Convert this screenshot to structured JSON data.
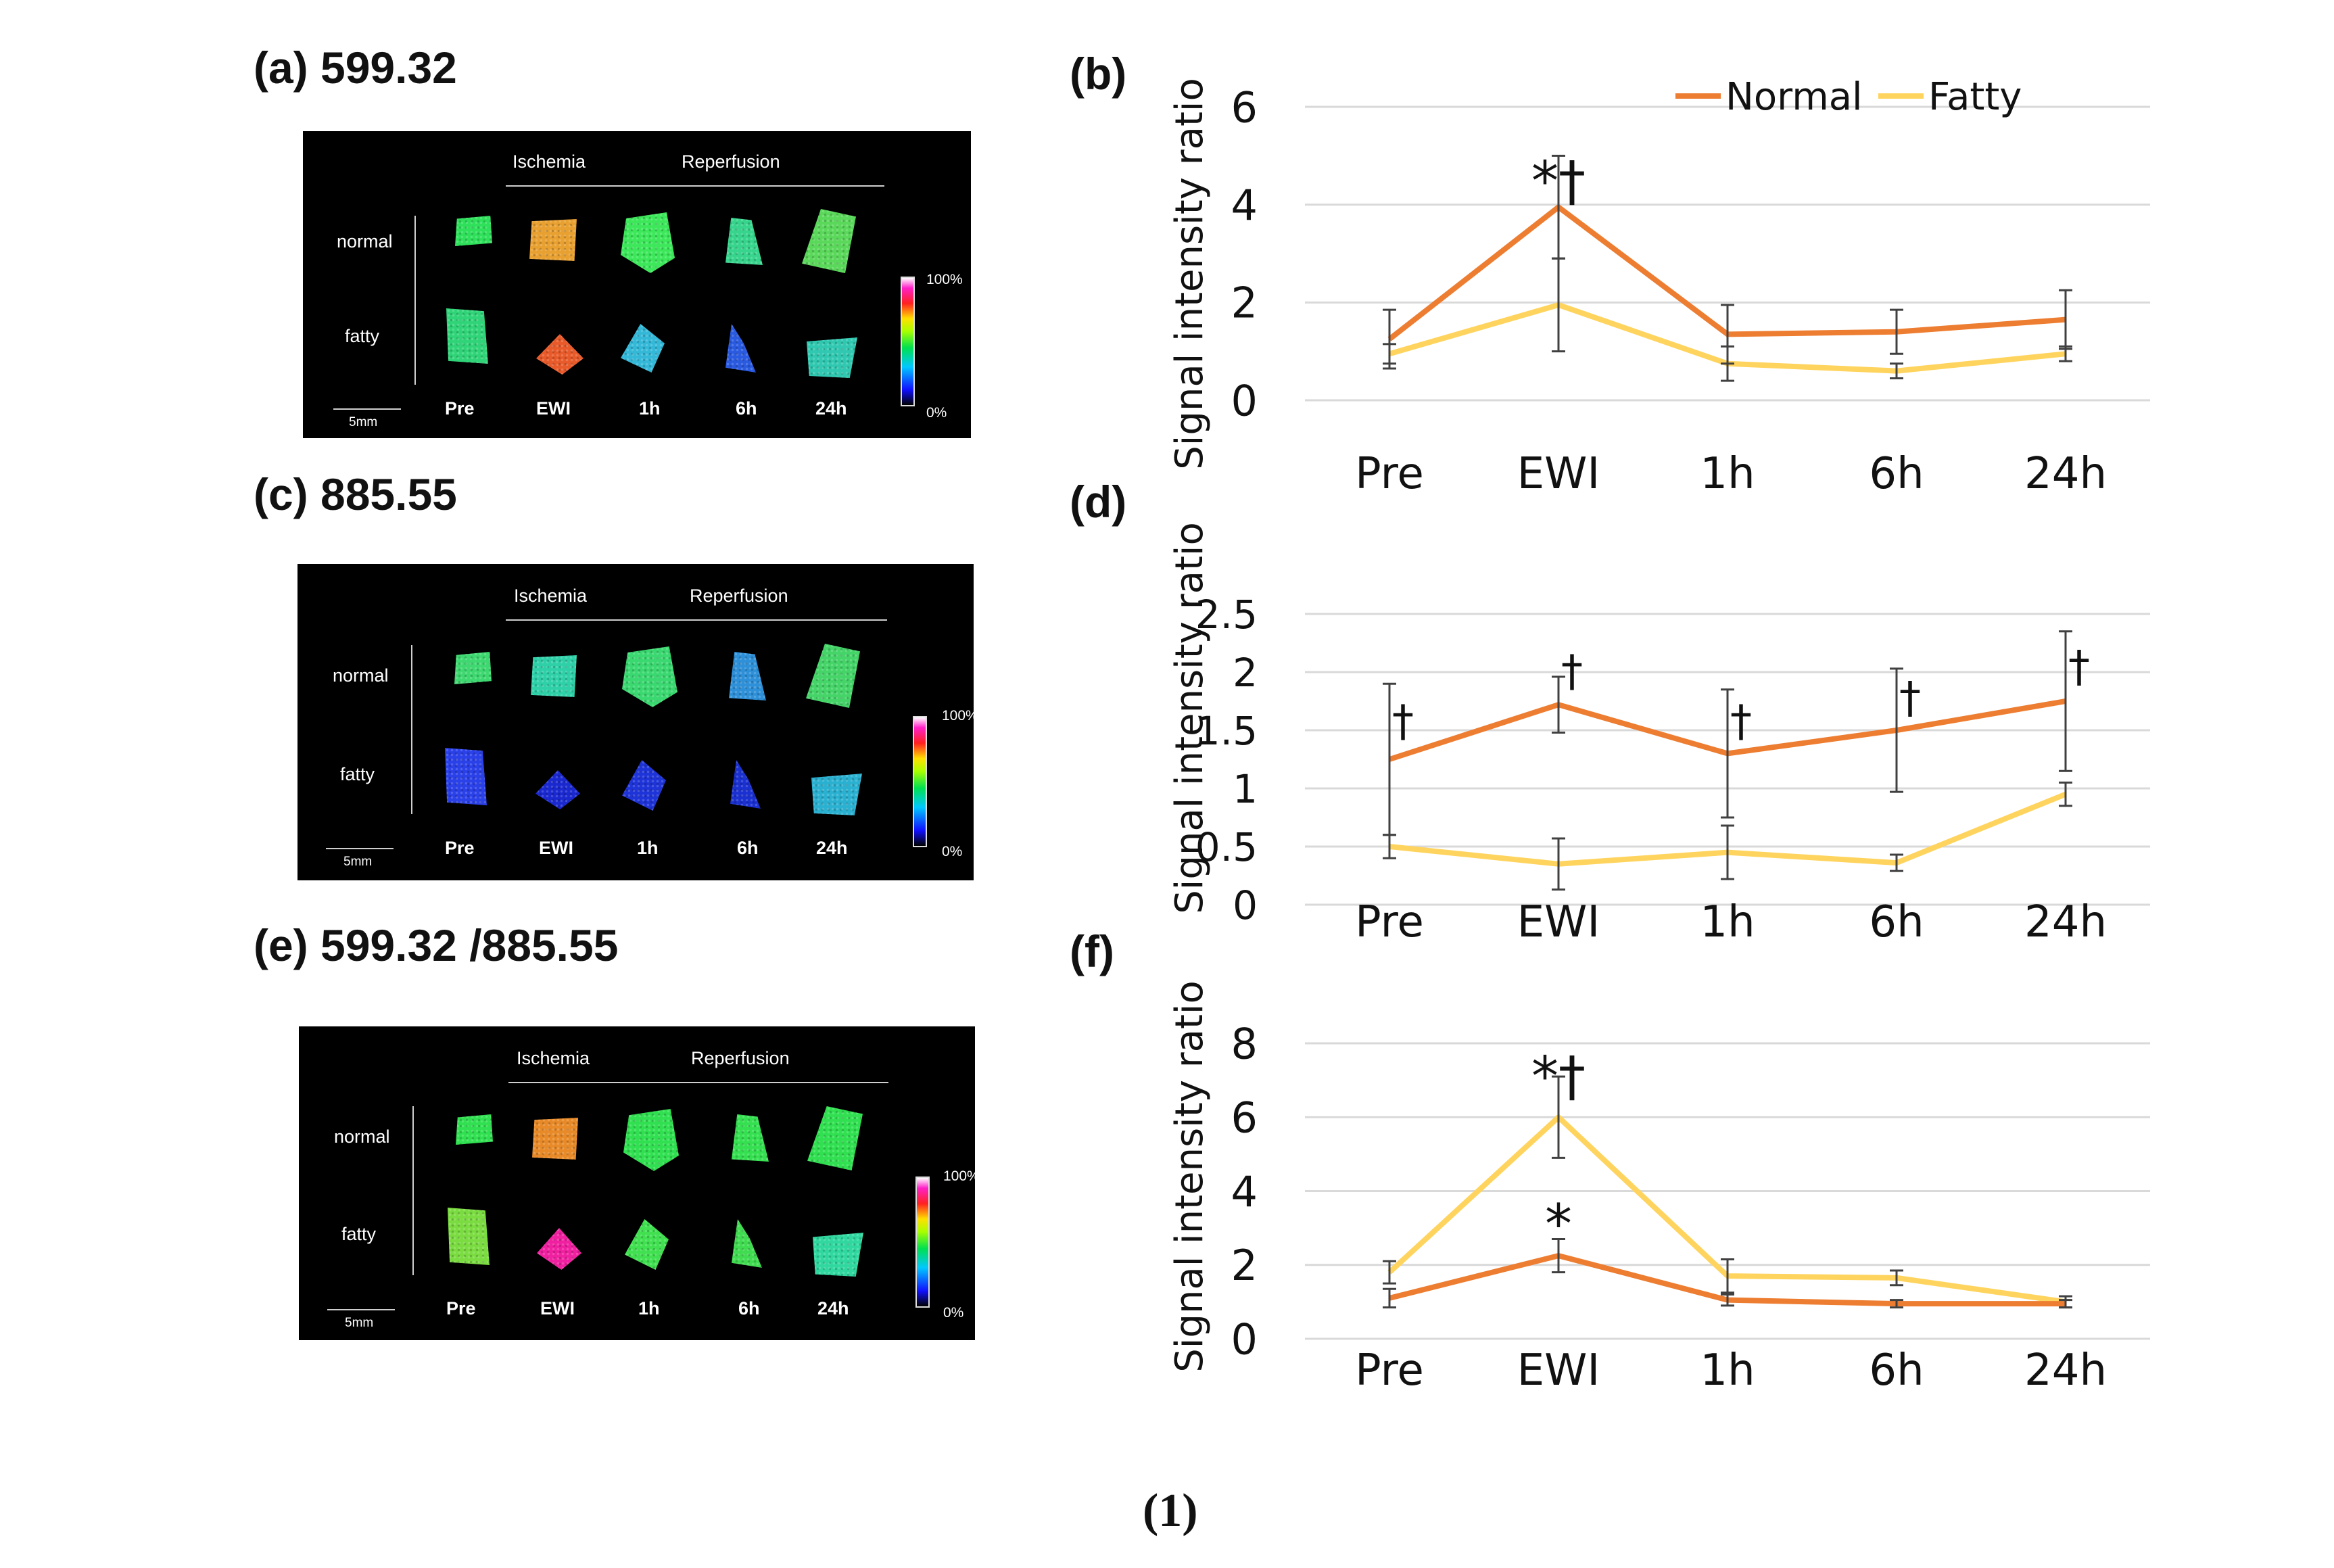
{
  "figure_number": "(1)",
  "msi_panels": [
    {
      "label": "(a) 599.32",
      "group_ischemia": "Ischemia",
      "group_reperfusion": "Reperfusion",
      "row_normal": "normal",
      "row_fatty": "fatty",
      "timepoints": [
        "Pre",
        "EWI",
        "1h",
        "6h",
        "24h"
      ],
      "scale_bar": "5mm",
      "colorbar_max": "100%",
      "colorbar_min": "0%",
      "normal_colors": [
        "#2ee05a",
        "#e8a030",
        "#3ce85a",
        "#36d48c",
        "#5ad85a"
      ],
      "fatty_colors": [
        "#30d478",
        "#e85a2a",
        "#34b8d8",
        "#2a5ae0",
        "#30c8b0"
      ]
    },
    {
      "label": "(c) 885.55",
      "group_ischemia": "Ischemia",
      "group_reperfusion": "Reperfusion",
      "row_normal": "normal",
      "row_fatty": "fatty",
      "timepoints": [
        "Pre",
        "EWI",
        "1h",
        "6h",
        "24h"
      ],
      "scale_bar": "5mm",
      "colorbar_max": "100%",
      "colorbar_min": "0%",
      "normal_colors": [
        "#3ed870",
        "#2ed0a8",
        "#3ad870",
        "#2e90d8",
        "#44d468"
      ],
      "fatty_colors": [
        "#2a40e8",
        "#1a28d0",
        "#1e34d8",
        "#1a30d0",
        "#2ab0d0"
      ]
    },
    {
      "label": "(e) 599.32 /885.55",
      "group_ischemia": "Ischemia",
      "group_reperfusion": "Reperfusion",
      "row_normal": "normal",
      "row_fatty": "fatty",
      "timepoints": [
        "Pre",
        "EWI",
        "1h",
        "6h",
        "24h"
      ],
      "scale_bar": "5mm",
      "colorbar_max": "100%",
      "colorbar_min": "0%",
      "normal_colors": [
        "#30e050",
        "#e88a28",
        "#30e050",
        "#34e050",
        "#30e050"
      ],
      "fatty_colors": [
        "#7adc40",
        "#f020a0",
        "#40e050",
        "#40dc50",
        "#30d8a0"
      ]
    }
  ],
  "legend": {
    "normal": "Normal",
    "fatty": "Fatty"
  },
  "colors": {
    "normal": "#ed7d31",
    "fatty": "#ffd45e",
    "grid": "#d9d9d9",
    "error_bar": "#404040"
  },
  "chart_data": [
    {
      "panel": "(b)",
      "type": "line",
      "ylabel": "Signal intensity ratio",
      "categories": [
        "Pre",
        "EWI",
        "1h",
        "6h",
        "24h"
      ],
      "ylim": [
        0,
        6
      ],
      "yticks": [
        "0",
        "2",
        "4",
        "6"
      ],
      "grid": true,
      "legend_position": "top",
      "series": [
        {
          "name": "Normal",
          "values": [
            1.25,
            3.95,
            1.35,
            1.4,
            1.65
          ],
          "err": [
            0.6,
            1.05,
            0.6,
            0.45,
            0.6
          ]
        },
        {
          "name": "Fatty",
          "values": [
            0.95,
            1.95,
            0.75,
            0.6,
            0.95
          ],
          "err": [
            0.2,
            0.95,
            0.35,
            0.15,
            0.15
          ]
        }
      ],
      "annotations": [
        {
          "text": "*†",
          "category": "EWI",
          "y": 4.1
        }
      ]
    },
    {
      "panel": "(d)",
      "type": "line",
      "ylabel": "Signal intensity ratio",
      "categories": [
        "Pre",
        "EWI",
        "1h",
        "6h",
        "24h"
      ],
      "ylim": [
        0,
        2.5
      ],
      "yticks": [
        "0",
        "0.5",
        "1",
        "1.5",
        "2",
        "2.5"
      ],
      "grid": true,
      "series": [
        {
          "name": "Normal",
          "values": [
            1.25,
            1.72,
            1.3,
            1.5,
            1.75
          ],
          "err": [
            0.65,
            0.24,
            0.55,
            0.53,
            0.6
          ]
        },
        {
          "name": "Fatty",
          "values": [
            0.5,
            0.35,
            0.45,
            0.36,
            0.95
          ],
          "err": [
            0.1,
            0.22,
            0.23,
            0.07,
            0.1
          ]
        }
      ],
      "annotations": [
        {
          "text": "†",
          "category": "Pre",
          "y": 1.45
        },
        {
          "text": "†",
          "category": "EWI",
          "y": 1.88
        },
        {
          "text": "†",
          "category": "1h",
          "y": 1.45
        },
        {
          "text": "†",
          "category": "6h",
          "y": 1.65
        },
        {
          "text": "†",
          "category": "24h",
          "y": 1.92
        }
      ]
    },
    {
      "panel": "(f)",
      "type": "line",
      "ylabel": "Signal intensity ratio",
      "categories": [
        "Pre",
        "EWI",
        "1h",
        "6h",
        "24h"
      ],
      "ylim": [
        0,
        8
      ],
      "yticks": [
        "0",
        "2",
        "4",
        "6",
        "8"
      ],
      "grid": true,
      "series": [
        {
          "name": "Normal",
          "values": [
            1.1,
            2.25,
            1.05,
            0.95,
            0.95
          ],
          "err": [
            0.25,
            0.45,
            0.15,
            0.1,
            0.1
          ]
        },
        {
          "name": "Fatty",
          "values": [
            1.8,
            6.0,
            1.7,
            1.65,
            1.0
          ],
          "err": [
            0.3,
            1.1,
            0.45,
            0.2,
            0.15
          ]
        }
      ],
      "annotations": [
        {
          "text": "*†",
          "category": "EWI",
          "y": 6.6
        },
        {
          "text": "*",
          "category": "EWI",
          "y": 2.6
        }
      ]
    }
  ]
}
